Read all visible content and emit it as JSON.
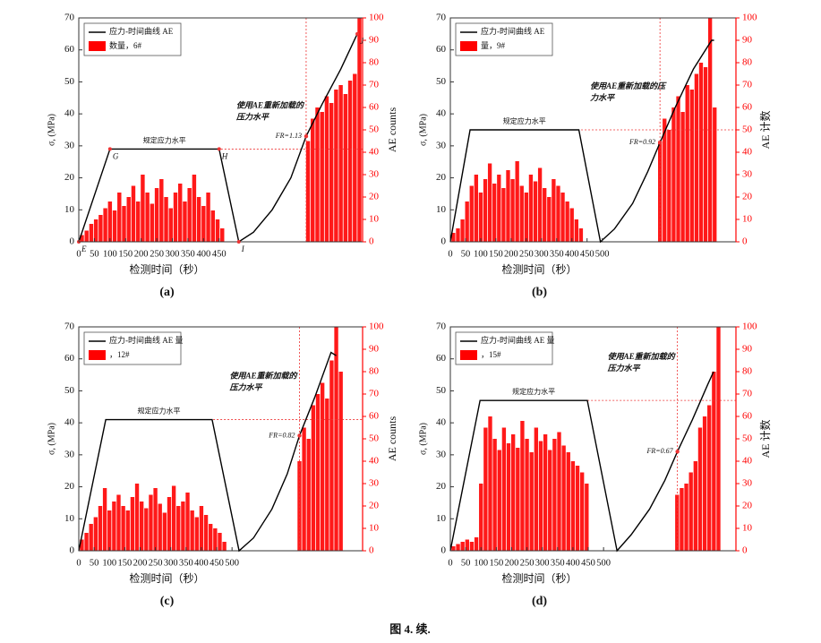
{
  "caption": "图 4. 续.",
  "chart_data": [
    {
      "type": "combo",
      "panel_label": "(a)",
      "x_label": "检测时间（秒）",
      "y_label": "σ, (MPa)",
      "y2_label": "AE counts",
      "xlim": [
        0,
        910
      ],
      "xticks": [
        0,
        50,
        100,
        150,
        200,
        250,
        300,
        350,
        400,
        450
      ],
      "ylim": [
        0,
        70
      ],
      "yticks": [
        0,
        10,
        20,
        30,
        40,
        50,
        60,
        70
      ],
      "y2lim": [
        0,
        100
      ],
      "y2ticks": [
        0,
        10,
        20,
        30,
        40,
        50,
        60,
        70,
        80,
        90,
        100
      ],
      "level": 29,
      "fr_x": 729,
      "fr_y": 33,
      "fr_label": "FR=1.13",
      "flat_label": "规定应力水平",
      "reload_label": [
        "使用AE重新加载的",
        "压力水平"
      ],
      "series": [
        {
          "name": "应力-时间曲线 AE",
          "color": "#000000",
          "x": [
            0,
            100,
            450,
            513,
            560,
            620,
            680,
            729,
            780,
            840,
            893
          ],
          "values": [
            0,
            29,
            29,
            0,
            3,
            10,
            20,
            33,
            43,
            54,
            65
          ],
          "point_labels": [
            "E",
            "G",
            "H",
            "I",
            null,
            null,
            null,
            null,
            null,
            null,
            "J"
          ]
        },
        {
          "name": "数量，6#",
          "color": "#ff0000",
          "axis": "y2",
          "x": [
            10,
            25,
            40,
            55,
            70,
            85,
            100,
            115,
            130,
            145,
            160,
            175,
            190,
            205,
            220,
            235,
            250,
            265,
            280,
            295,
            310,
            325,
            340,
            355,
            370,
            385,
            400,
            415,
            430,
            445,
            460,
            735,
            750,
            765,
            780,
            795,
            810,
            825,
            840,
            855,
            870,
            885,
            900
          ],
          "values": [
            3,
            5,
            8,
            10,
            12,
            15,
            18,
            14,
            22,
            16,
            20,
            25,
            18,
            30,
            22,
            17,
            24,
            28,
            20,
            15,
            22,
            26,
            18,
            24,
            30,
            20,
            16,
            22,
            14,
            10,
            6,
            45,
            55,
            60,
            58,
            65,
            62,
            68,
            70,
            66,
            72,
            75,
            100
          ]
        }
      ]
    },
    {
      "type": "combo",
      "panel_label": "(b)",
      "x_label": "检测时间（秒）",
      "y_label": "σ, (MPa)",
      "y2_label": "AE 计数",
      "xlim": [
        0,
        940
      ],
      "xticks": [
        0,
        50,
        100,
        150,
        200,
        250,
        300,
        350,
        400,
        450,
        500
      ],
      "ylim": [
        0,
        70
      ],
      "yticks": [
        0,
        10,
        20,
        30,
        40,
        50,
        60,
        70
      ],
      "y2lim": [
        0,
        100
      ],
      "y2ticks": [
        0,
        10,
        20,
        30,
        40,
        50,
        60,
        70,
        80,
        90,
        100
      ],
      "level": 35,
      "fr_x": 690,
      "fr_y": 31,
      "fr_label": "FR=0.92",
      "flat_label": "规定应力水平",
      "reload_label": [
        "使用AE重新加载的压",
        "力水平"
      ],
      "series": [
        {
          "name": "应力-时间曲线 AE",
          "color": "#000000",
          "x": [
            0,
            65,
            423,
            494,
            540,
            600,
            650,
            690,
            740,
            800,
            860,
            868
          ],
          "values": [
            0,
            35,
            35,
            0,
            4,
            12,
            22,
            31,
            42,
            54,
            63,
            63
          ]
        },
        {
          "name": "量，9#",
          "color": "#ff0000",
          "axis": "y2",
          "x": [
            10,
            25,
            40,
            55,
            70,
            85,
            100,
            115,
            130,
            145,
            160,
            175,
            190,
            205,
            220,
            235,
            250,
            265,
            280,
            295,
            310,
            325,
            340,
            355,
            370,
            385,
            400,
            415,
            430,
            690,
            705,
            720,
            735,
            750,
            765,
            780,
            795,
            810,
            825,
            840,
            855,
            870
          ],
          "values": [
            4,
            6,
            10,
            18,
            25,
            30,
            22,
            28,
            35,
            26,
            30,
            24,
            32,
            28,
            36,
            25,
            22,
            30,
            27,
            33,
            24,
            20,
            28,
            25,
            22,
            18,
            15,
            10,
            6,
            45,
            55,
            50,
            60,
            65,
            58,
            70,
            68,
            75,
            80,
            78,
            100,
            60
          ]
        }
      ]
    },
    {
      "type": "combo",
      "panel_label": "(c)",
      "x_label": "检测时间（秒）",
      "y_label": "σ, (MPa)",
      "y2_label": "AE counts",
      "xlim": [
        0,
        926
      ],
      "xticks": [
        0,
        50,
        100,
        150,
        200,
        250,
        300,
        350,
        400,
        450,
        500
      ],
      "ylim": [
        0,
        70
      ],
      "yticks": [
        0,
        10,
        20,
        30,
        40,
        50,
        60,
        70
      ],
      "y2lim": [
        0,
        100
      ],
      "y2ticks": [
        0,
        10,
        20,
        30,
        40,
        50,
        60,
        70,
        80,
        90,
        100
      ],
      "level": 41,
      "fr_x": 720,
      "fr_y": 36,
      "fr_label": "FR=0.82",
      "flat_label": "规定应力水平",
      "reload_label": [
        "使用AE重新加载的",
        "压力水平"
      ],
      "series": [
        {
          "name": "应力-时间曲线 AE 量",
          "color": "#000000",
          "x": [
            0,
            88,
            435,
            523,
            570,
            630,
            680,
            720,
            770,
            823,
            840
          ],
          "values": [
            0,
            41,
            41,
            0,
            4,
            13,
            24,
            36,
            48,
            62,
            61
          ]
        },
        {
          "name": "，12#",
          "color": "#ff0000",
          "axis": "y2",
          "x": [
            10,
            25,
            40,
            55,
            70,
            85,
            100,
            115,
            130,
            145,
            160,
            175,
            190,
            205,
            220,
            235,
            250,
            265,
            280,
            295,
            310,
            325,
            340,
            355,
            370,
            385,
            400,
            415,
            430,
            445,
            460,
            475,
            720,
            735,
            750,
            765,
            780,
            795,
            810,
            825,
            840,
            855
          ],
          "values": [
            5,
            8,
            12,
            15,
            20,
            28,
            18,
            22,
            25,
            20,
            18,
            24,
            30,
            22,
            19,
            25,
            28,
            21,
            17,
            24,
            29,
            20,
            22,
            26,
            18,
            15,
            20,
            16,
            12,
            10,
            8,
            4,
            40,
            55,
            50,
            65,
            70,
            75,
            68,
            85,
            100,
            80
          ]
        }
      ]
    },
    {
      "type": "combo",
      "panel_label": "(d)",
      "x_label": "检测时间（秒）",
      "y_label": "σ, (MPa)",
      "y2_label": "AE 计数",
      "xlim": [
        0,
        932
      ],
      "xticks": [
        0,
        50,
        100,
        150,
        200,
        250,
        300,
        350,
        400,
        450,
        500
      ],
      "ylim": [
        0,
        70
      ],
      "yticks": [
        0,
        10,
        20,
        30,
        40,
        50,
        60,
        70
      ],
      "y2lim": [
        0,
        100
      ],
      "y2ticks": [
        0,
        10,
        20,
        30,
        40,
        50,
        60,
        70,
        80,
        90,
        100
      ],
      "level": 47,
      "fr_x": 741,
      "fr_y": 31,
      "fr_label": "FR=0.67",
      "flat_label": "规定应力水平",
      "reload_label": [
        "使用AE重新加载的",
        "压力水平"
      ],
      "series": [
        {
          "name": "应力-时间曲线 AE 量",
          "color": "#000000",
          "x": [
            0,
            97,
            447,
            544,
            590,
            650,
            700,
            741,
            790,
            840,
            859
          ],
          "values": [
            0,
            47,
            47,
            0,
            5,
            13,
            22,
            31,
            41,
            52,
            56
          ]
        },
        {
          "name": "，15#",
          "color": "#ff0000",
          "axis": "y2",
          "x": [
            10,
            25,
            40,
            55,
            70,
            85,
            100,
            115,
            130,
            145,
            160,
            175,
            190,
            205,
            220,
            235,
            250,
            265,
            280,
            295,
            310,
            325,
            340,
            355,
            370,
            385,
            400,
            415,
            430,
            445,
            740,
            755,
            770,
            785,
            800,
            815,
            830,
            845,
            860,
            875
          ],
          "values": [
            2,
            3,
            4,
            5,
            4,
            6,
            30,
            55,
            60,
            50,
            45,
            55,
            48,
            52,
            46,
            58,
            50,
            44,
            55,
            49,
            52,
            45,
            50,
            53,
            47,
            44,
            40,
            38,
            35,
            30,
            25,
            28,
            30,
            35,
            40,
            55,
            60,
            65,
            80,
            100
          ]
        }
      ]
    }
  ]
}
